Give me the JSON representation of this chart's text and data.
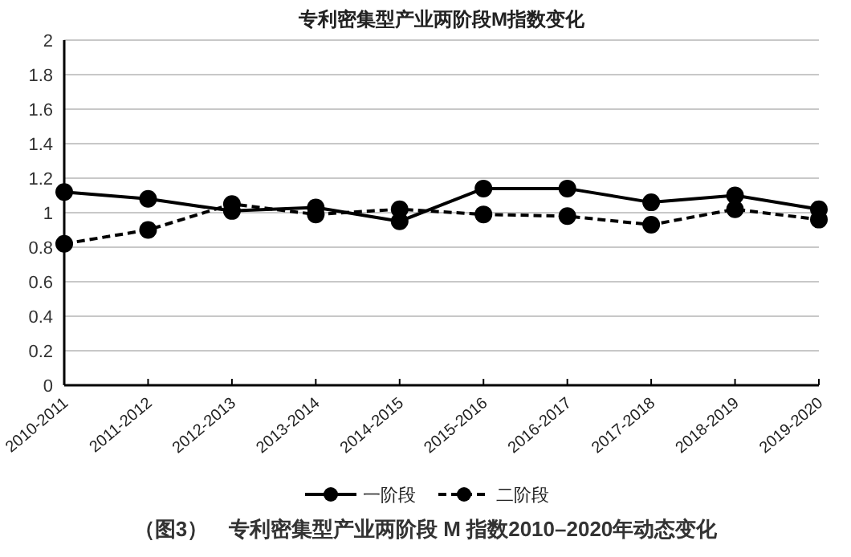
{
  "chart_data": {
    "type": "line",
    "title": "专利密集型产业两阶段M指数变化",
    "categories": [
      "2010-2011",
      "2011-2012",
      "2012-2013",
      "2013-2014",
      "2014-2015",
      "2015-2016",
      "2016-2017",
      "2017-2018",
      "2018-2019",
      "2019-2020"
    ],
    "series": [
      {
        "name": "一阶段",
        "color": "#000000",
        "line_style": "solid",
        "values": [
          1.12,
          1.08,
          1.01,
          1.03,
          0.95,
          1.14,
          1.14,
          1.06,
          1.1,
          1.02
        ]
      },
      {
        "name": "二阶段",
        "color": "#000000",
        "line_style": "dashed",
        "values": [
          0.82,
          0.9,
          1.05,
          0.99,
          1.02,
          0.99,
          0.98,
          0.93,
          1.02,
          0.96
        ]
      }
    ],
    "ylim": [
      0,
      2
    ],
    "yticks": [
      0,
      0.2,
      0.4,
      0.6,
      0.8,
      1,
      1.2,
      1.4,
      1.6,
      1.8,
      2
    ],
    "grid": "y",
    "legend": "bottom",
    "marker": "circle",
    "annotations": [
      "（图3）　专利密集型产业两阶段 M 指数2010–2020年动态变化"
    ]
  }
}
